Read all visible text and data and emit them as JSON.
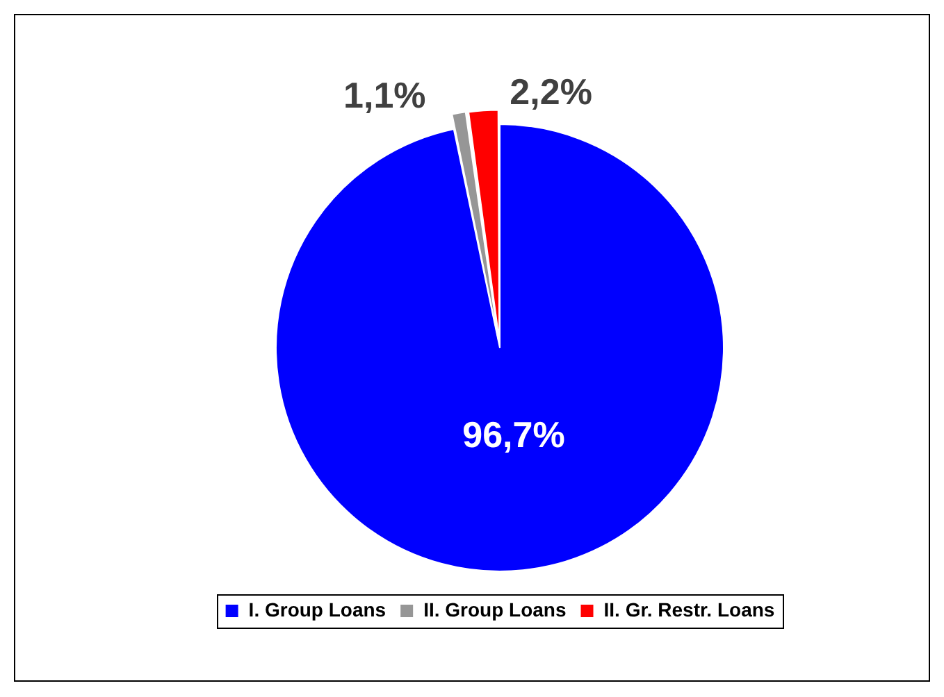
{
  "chart_data": {
    "type": "pie",
    "categories": [
      "I. Group Loans",
      "II. Group Loans",
      "II. Gr. Restr. Loans"
    ],
    "values": [
      96.7,
      1.1,
      2.2
    ],
    "colors": [
      "#0000ff",
      "#969696",
      "#ff0000"
    ],
    "value_labels": [
      "96,7%",
      "1,1%",
      "2,2%"
    ],
    "legend": "bottom"
  }
}
